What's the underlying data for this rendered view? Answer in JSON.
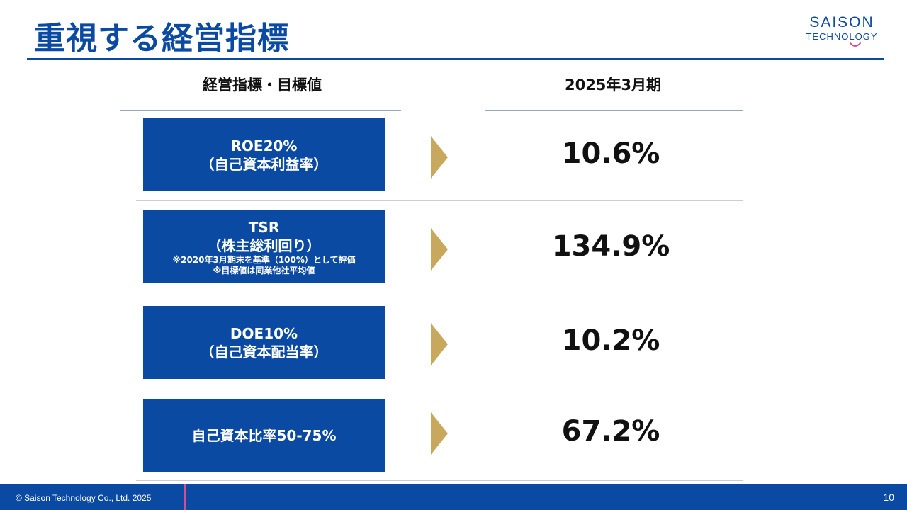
{
  "title": "重視する経営指標",
  "logo": {
    "line1": "SAISON",
    "line2": "TECHNOLOGY"
  },
  "columns": {
    "left": "経営指標・目標値",
    "right": "2025年3月期"
  },
  "rows": [
    {
      "label": "ROE20%",
      "sub": "（自己資本利益率）",
      "value": "10.6%"
    },
    {
      "label": "TSR",
      "sub": "（株主総利回り）",
      "note1": "※2020年3月期末を基準（100%）として評価",
      "note2": "※目標値は同業他社平均値",
      "value": "134.9%"
    },
    {
      "label": "DOE10%",
      "sub": "（自己資本配当率）",
      "value": "10.2%"
    },
    {
      "label": "自己資本比率50-75%",
      "value": "67.2%"
    }
  ],
  "footer": {
    "copyright": "© Saison Technology Co., Ltd. 2025",
    "page": "10"
  },
  "colors": {
    "brand_blue": "#0b4aa2",
    "arrow_gold": "#c8a85c",
    "footer_accent": "#d94c8f"
  }
}
